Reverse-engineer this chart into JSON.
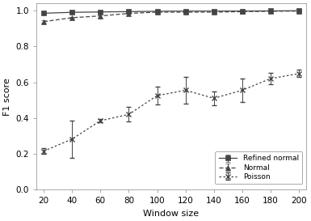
{
  "x": [
    20,
    40,
    60,
    80,
    100,
    120,
    140,
    160,
    180,
    200
  ],
  "refined_normal_y": [
    0.985,
    0.99,
    0.992,
    0.994,
    0.996,
    0.997,
    0.997,
    0.997,
    0.998,
    0.999
  ],
  "refined_normal_yerr": [
    0.004,
    0.003,
    0.003,
    0.002,
    0.002,
    0.001,
    0.001,
    0.001,
    0.001,
    0.001
  ],
  "normal_y": [
    0.938,
    0.96,
    0.97,
    0.984,
    0.991,
    0.991,
    0.991,
    0.994,
    0.996,
    0.997
  ],
  "normal_yerr": [
    0.006,
    0.006,
    0.012,
    0.004,
    0.003,
    0.003,
    0.003,
    0.002,
    0.002,
    0.001
  ],
  "poisson_y": [
    0.215,
    0.282,
    0.385,
    0.42,
    0.525,
    0.555,
    0.51,
    0.555,
    0.62,
    0.648
  ],
  "poisson_yerr": [
    0.015,
    0.105,
    0.01,
    0.04,
    0.05,
    0.075,
    0.04,
    0.065,
    0.03,
    0.02
  ],
  "xlabel": "Window size",
  "ylabel": "F1 score",
  "xlim": [
    15,
    205
  ],
  "ylim": [
    0,
    1.04
  ],
  "xticks": [
    20,
    40,
    60,
    80,
    100,
    120,
    140,
    160,
    180,
    200
  ],
  "yticks": [
    0,
    0.2,
    0.4,
    0.6,
    0.8,
    1.0
  ],
  "legend_labels": [
    "Refined normal",
    "Normal",
    "Poisson"
  ],
  "gray": "#444444",
  "background_color": "#ffffff"
}
